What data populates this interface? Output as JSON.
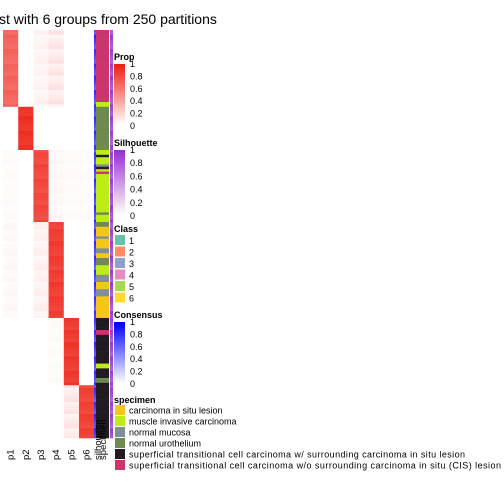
{
  "title": "st with 6 groups from 250 partitions",
  "chart_data": {
    "type": "heatmap",
    "title": "st with 6 groups from 250 partitions",
    "column_labels": [
      "p1",
      "p2",
      "p3",
      "p4",
      "p5",
      "p6",
      "silhouette",
      "specimen"
    ],
    "blocks": [
      {
        "class": 1,
        "n": 32,
        "p": [
          0.72,
          0.0,
          0.05,
          0.1,
          0.0,
          0.0
        ],
        "spec": [
          5,
          5,
          5,
          5,
          5,
          5,
          5,
          5,
          5,
          5,
          5,
          5,
          5,
          5,
          5,
          5,
          5,
          5,
          5,
          5,
          5,
          5,
          5,
          5,
          5,
          5,
          5,
          5,
          5,
          5,
          1,
          1
        ]
      },
      {
        "class": 2,
        "n": 18,
        "p": [
          0.0,
          0.95,
          0.0,
          0.0,
          0.0,
          0.0
        ],
        "spec": [
          3,
          3,
          3,
          3,
          3,
          3,
          3,
          3,
          3,
          3,
          3,
          3,
          3,
          3,
          3,
          3,
          3,
          3
        ]
      },
      {
        "class": 3,
        "n": 30,
        "p": [
          0.02,
          0.0,
          0.85,
          0.03,
          0.02,
          0.02
        ],
        "spec": [
          1,
          1,
          4,
          1,
          1,
          1,
          2,
          4,
          1,
          5,
          1,
          1,
          1,
          1,
          1,
          1,
          1,
          1,
          1,
          1,
          1,
          1,
          1,
          1,
          1,
          1,
          3,
          1,
          1,
          1
        ]
      },
      {
        "class": 4,
        "n": 40,
        "p": [
          0.03,
          0.0,
          0.06,
          0.9,
          0.0,
          0.0
        ],
        "spec": [
          3,
          3,
          0,
          0,
          0,
          0,
          2,
          0,
          0,
          0,
          0,
          2,
          2,
          0,
          0,
          3,
          3,
          3,
          1,
          1,
          1,
          1,
          2,
          2,
          2,
          0,
          0,
          0,
          2,
          2,
          2,
          0,
          0,
          0,
          0,
          0,
          0,
          0,
          0,
          0
        ]
      },
      {
        "class": 5,
        "n": 28,
        "p": [
          0.0,
          0.0,
          0.0,
          0.02,
          0.92,
          0.0
        ],
        "spec": [
          4,
          4,
          4,
          4,
          4,
          5,
          5,
          4,
          4,
          4,
          4,
          4,
          4,
          4,
          4,
          4,
          4,
          4,
          4,
          1,
          1,
          4,
          4,
          4,
          4,
          3,
          3,
          4
        ]
      },
      {
        "class": 6,
        "n": 22,
        "p": [
          0.0,
          0.0,
          0.0,
          0.0,
          0.1,
          0.88
        ],
        "spec": [
          4,
          4,
          4,
          4,
          4,
          4,
          4,
          4,
          4,
          4,
          4,
          4,
          4,
          4,
          4,
          4,
          4,
          4,
          4,
          4,
          4,
          4
        ]
      }
    ],
    "legends": {
      "prop": {
        "title": "Prop",
        "ticks": [
          "1",
          "0.8",
          "0.6",
          "0.4",
          "0.2",
          "0"
        ]
      },
      "silhouette": {
        "title": "Silhouette",
        "ticks": [
          "1",
          "0.8",
          "0.6",
          "0.4",
          "0.2",
          "0"
        ]
      },
      "class": {
        "title": "Class",
        "labels": [
          "1",
          "2",
          "3",
          "4",
          "5",
          "6"
        ],
        "colors": [
          "#66c2a5",
          "#fc8d62",
          "#8da0cb",
          "#e78ac3",
          "#a6d854",
          "#ffd92f"
        ]
      },
      "consensus": {
        "title": "Consensus",
        "ticks": [
          "1",
          "0.8",
          "0.6",
          "0.4",
          "0.2",
          "0"
        ]
      },
      "specimen": {
        "title": "specimen",
        "labels": [
          "carcinoma in situ lesion",
          "muscle invasive carcinoma",
          "normal mucosa",
          "normal urothelium",
          "superficial transitional cell carcinoma w/ surrounding carcinoma in situ lesion",
          "superficial transitional cell carcinoma w/o surrounding carcinoma in situ (CIS) lesion"
        ],
        "colors": [
          "#f5c518",
          "#bdec16",
          "#7f8f9a",
          "#6f8a4e",
          "#221c22",
          "#c9356c"
        ]
      }
    }
  }
}
